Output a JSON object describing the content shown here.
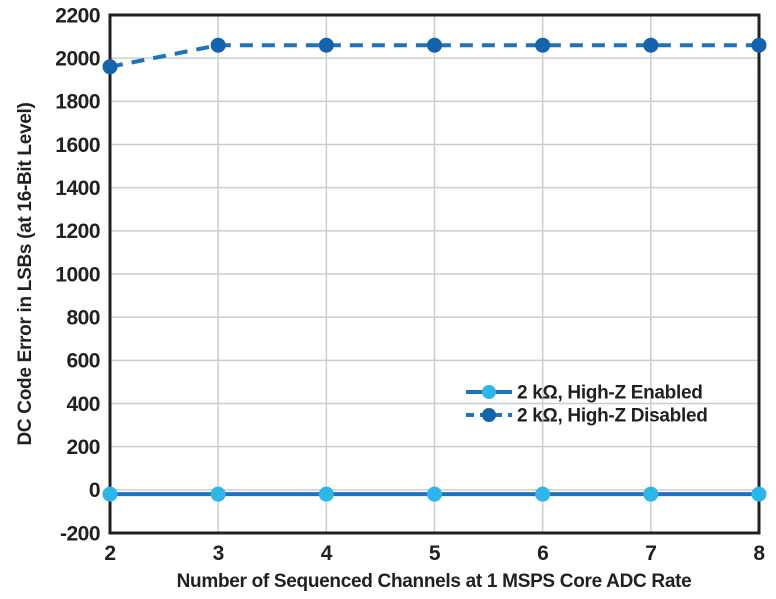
{
  "figure": {
    "background": "#ffffff"
  },
  "chart_data": {
    "type": "line",
    "title": "",
    "xlabel": "Number of Sequenced Channels at 1 MSPS Core ADC Rate",
    "ylabel": "DC Code Error in LSBs (at 16-Bit Level)",
    "x": [
      2,
      3,
      4,
      5,
      6,
      7,
      8
    ],
    "xlim": [
      2,
      8
    ],
    "ylim": [
      -200,
      2200
    ],
    "xticks": [
      2,
      3,
      4,
      5,
      6,
      7,
      8
    ],
    "yticks": [
      -200,
      0,
      200,
      400,
      600,
      800,
      1000,
      1200,
      1400,
      1600,
      1800,
      2000,
      2200
    ],
    "grid": true,
    "legend_position": "inside right-middle",
    "series": [
      {
        "name": "2 kΩ, High-Z Enabled",
        "values": [
          -20,
          -20,
          -20,
          -20,
          -20,
          -20,
          -20
        ],
        "line_style": "solid",
        "line_color": "#1C74BB",
        "marker": "circle",
        "marker_color": "#2EB6E8"
      },
      {
        "name": "2 kΩ, High-Z Disabled",
        "values": [
          1960,
          2060,
          2060,
          2060,
          2060,
          2060,
          2060
        ],
        "line_style": "dashed",
        "line_color": "#1C74BB",
        "marker": "circle",
        "marker_color": "#1463AC"
      }
    ],
    "colors": {
      "grid": "#cdcdcd",
      "axis": "#231f20",
      "text": "#231f20",
      "background": "#ffffff"
    }
  }
}
